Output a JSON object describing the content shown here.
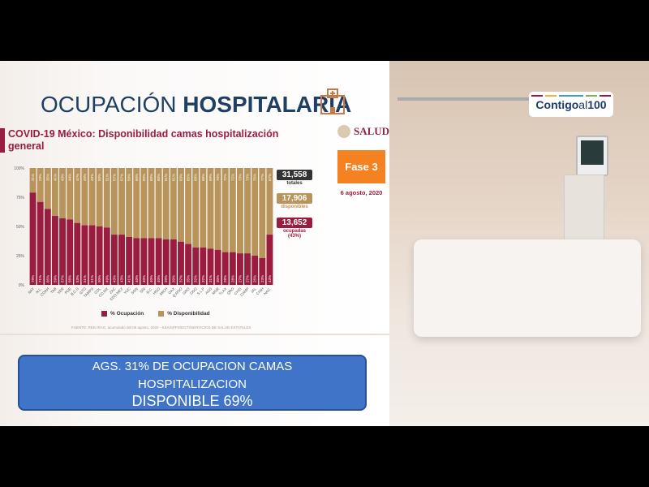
{
  "slide": {
    "title_light": "OCUPACIÓN ",
    "title_bold": "HOSPITALARIA",
    "chart_title": "COVID-19 México: Disponibilidad camas hospitalización general",
    "logo_text": "SALUD",
    "phase": "Fase 3",
    "date": "6 agosto, 2020",
    "stats": [
      {
        "value": "31,558",
        "label": "totales",
        "color": "#333333"
      },
      {
        "value": "17,906",
        "label": "disponibles",
        "color": "#b8935a"
      },
      {
        "value": "13,652",
        "label": "ocupadas (43%)",
        "color": "#9a1c3f"
      }
    ],
    "source": "FUENTE: RED IRAG, acumulado del 05 agosto, 2020  -  SSA/SPPS/DGTI/SERVICIOS DE SALUD ESTATALES"
  },
  "chart_data": {
    "type": "bar",
    "stacked": true,
    "categories": [
      "NAY",
      "N.L.",
      "COAH",
      "TAB",
      "VER",
      "PUE",
      "B.C.S",
      "GTO",
      "TAMPS",
      "COL",
      "CD.MX",
      "ZAC",
      "EDO.MEX",
      "YUC",
      "SON",
      "SIN",
      "B.C.",
      "HGO",
      "MICH",
      "OAX",
      "Q.ROO",
      "GRO",
      "DGO",
      "S.L.P",
      "AGS",
      "MOR",
      "TLAX",
      "QRO",
      "CHIS",
      "CAMP",
      "JAL",
      "CHIH",
      "NAC."
    ],
    "series": [
      {
        "name": "% Ocupación",
        "color": "#9a1c3f",
        "values": [
          79,
          71,
          65,
          59,
          57,
          56,
          53,
          51,
          51,
          50,
          49,
          43,
          43,
          41,
          40,
          40,
          40,
          40,
          39,
          39,
          37,
          35,
          32,
          32,
          31,
          30,
          28,
          28,
          27,
          27,
          25,
          23,
          43
        ]
      },
      {
        "name": "% Disponibilidad",
        "color": "#b8935a",
        "values": [
          21,
          29,
          35,
          41,
          43,
          44,
          47,
          49,
          49,
          50,
          51,
          57,
          57,
          59,
          60,
          60,
          60,
          60,
          61,
          61,
          63,
          65,
          68,
          68,
          69,
          70,
          72,
          72,
          73,
          73,
          75,
          77,
          57
        ]
      }
    ],
    "yticks": [
      "0%",
      "25%",
      "50%",
      "75%",
      "100%"
    ],
    "ylim": [
      0,
      100
    ],
    "legend": "bottom"
  },
  "overlay": {
    "brand": "Contigo",
    "brand2": "al",
    "brand3": "100"
  },
  "banner": {
    "line1": "AGS. 31% DE OCUPACION CAMAS",
    "line2": "HOSPITALIZACION",
    "line3": "DISPONIBLE 69%"
  }
}
